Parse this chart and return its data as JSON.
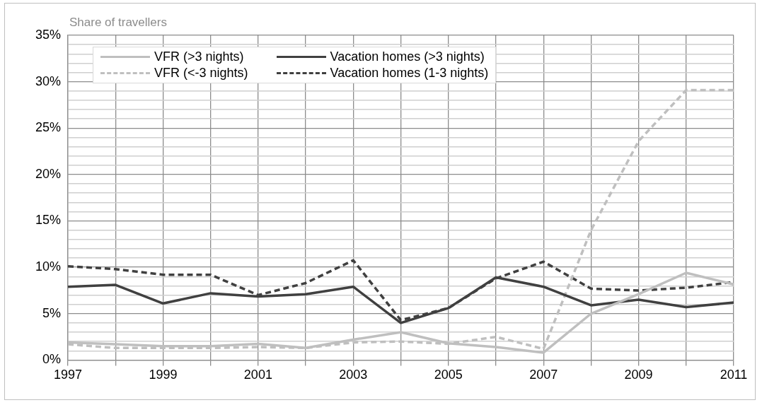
{
  "chart_data": {
    "type": "line",
    "ylabel": "Share of travellers",
    "x": [
      1997,
      1998,
      1999,
      2000,
      2001,
      2002,
      2003,
      2004,
      2005,
      2006,
      2007,
      2008,
      2009,
      2010,
      2011
    ],
    "series": [
      {
        "name": "VFR (>3 nights)",
        "color": "#bfbfbf",
        "line_style": "solid",
        "values": [
          1.9,
          1.7,
          1.5,
          1.5,
          1.75,
          1.3,
          2.2,
          3.0,
          1.8,
          1.4,
          0.8,
          5.0,
          7.1,
          9.4,
          8.15
        ]
      },
      {
        "name": "Vacation homes (>3 nights)",
        "color": "#404040",
        "line_style": "solid",
        "values": [
          7.9,
          8.1,
          6.1,
          7.2,
          6.85,
          7.1,
          7.9,
          4.0,
          5.6,
          8.9,
          7.9,
          5.9,
          6.5,
          5.7,
          6.2
        ]
      },
      {
        "name": "VFR (<-3 nights)",
        "color": "#bfbfbf",
        "line_style": "dashed",
        "values": [
          1.7,
          1.3,
          1.3,
          1.3,
          1.4,
          1.3,
          1.9,
          2.0,
          1.75,
          2.5,
          1.2,
          14.0,
          23.6,
          29.1,
          29.1
        ]
      },
      {
        "name": "Vacation homes (1-3 nights)",
        "color": "#404040",
        "line_style": "dashed",
        "values": [
          10.1,
          9.8,
          9.2,
          9.2,
          7.0,
          8.3,
          10.75,
          4.3,
          5.6,
          8.8,
          10.6,
          7.7,
          7.5,
          7.8,
          8.4
        ]
      }
    ],
    "xlim": [
      1997,
      2011
    ],
    "xticks": [
      1997,
      {
        "value": 1998,
        "label": null
      },
      1999,
      {
        "value": 2000,
        "label": null
      },
      2001,
      {
        "value": 2002,
        "label": null
      },
      2003,
      {
        "value": 2004,
        "label": null
      },
      2005,
      {
        "value": 2006,
        "label": null
      },
      2007,
      {
        "value": 2008,
        "label": null
      },
      2009,
      {
        "value": 2010,
        "label": null
      },
      2011
    ],
    "ylim": [
      0,
      35
    ],
    "yticks": [
      {
        "value": 0,
        "label": "0%"
      },
      {
        "value": 1,
        "label": null
      },
      {
        "value": 2,
        "label": null
      },
      {
        "value": 3,
        "label": null
      },
      {
        "value": 4,
        "label": null
      },
      {
        "value": 5,
        "label": "5%"
      },
      {
        "value": 6,
        "label": null
      },
      {
        "value": 7,
        "label": null
      },
      {
        "value": 8,
        "label": null
      },
      {
        "value": 9,
        "label": null
      },
      {
        "value": 10,
        "label": "10%"
      },
      {
        "value": 11,
        "label": null
      },
      {
        "value": 12,
        "label": null
      },
      {
        "value": 13,
        "label": null
      },
      {
        "value": 14,
        "label": null
      },
      {
        "value": 15,
        "label": "15%"
      },
      {
        "value": 16,
        "label": null
      },
      {
        "value": 17,
        "label": null
      },
      {
        "value": 18,
        "label": null
      },
      {
        "value": 19,
        "label": null
      },
      {
        "value": 20,
        "label": "20%"
      },
      {
        "value": 21,
        "label": null
      },
      {
        "value": 22,
        "label": null
      },
      {
        "value": 23,
        "label": null
      },
      {
        "value": 24,
        "label": null
      },
      {
        "value": 25,
        "label": "25%"
      },
      {
        "value": 26,
        "label": null
      },
      {
        "value": 27,
        "label": null
      },
      {
        "value": 28,
        "label": null
      },
      {
        "value": 29,
        "label": null
      },
      {
        "value": 30,
        "label": "30%"
      },
      {
        "value": 31,
        "label": null
      },
      {
        "value": 32,
        "label": null
      },
      {
        "value": 33,
        "label": null
      },
      {
        "value": 34,
        "label": null
      },
      {
        "value": 35,
        "label": "35%"
      }
    ],
    "grid": true,
    "legend": "top",
    "marker": "none"
  }
}
